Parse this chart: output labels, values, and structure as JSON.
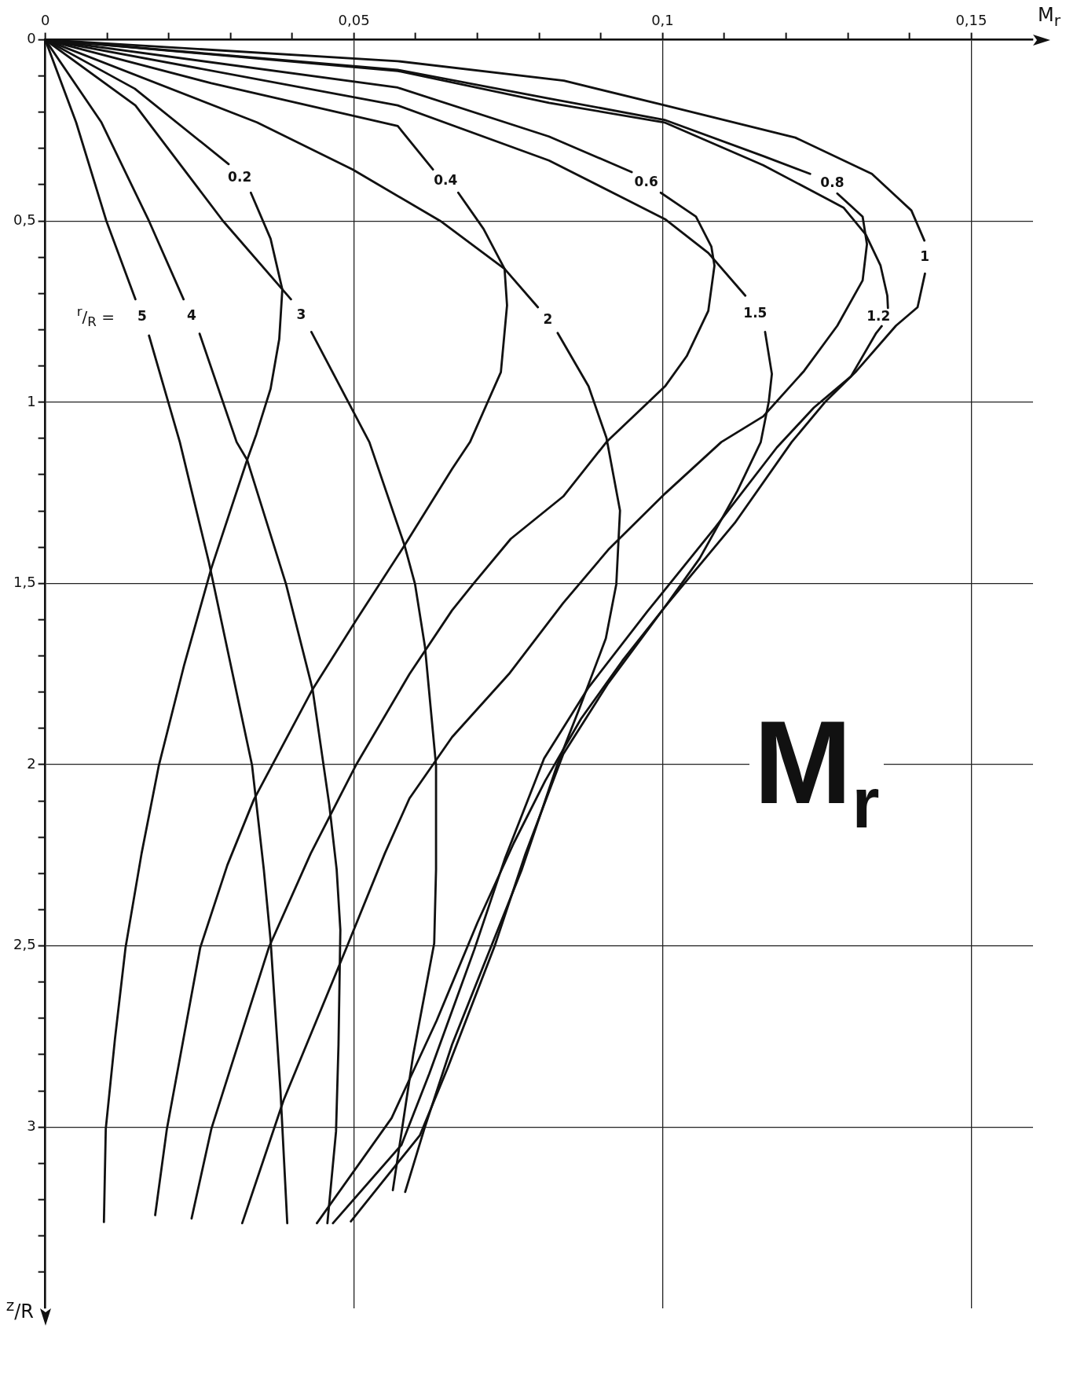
{
  "chart_data": {
    "type": "line",
    "title": "M$_{r}$",
    "xlabel": "M$_{r}$",
    "ylabel": "$^{z}$/R",
    "annotations": [
      "$^{r}$/$_{R}$ ="
    ],
    "xlim": [
      0,
      0.16
    ],
    "xticks": [
      0,
      {
        "value": 0.01,
        "label": null
      },
      {
        "value": 0.02,
        "label": null
      },
      {
        "value": 0.03,
        "label": null
      },
      {
        "value": 0.04,
        "label": null
      },
      {
        "value": 0.05,
        "label": "0,05"
      },
      {
        "value": 0.06,
        "label": null
      },
      {
        "value": 0.07,
        "label": null
      },
      {
        "value": 0.08,
        "label": null
      },
      {
        "value": 0.09,
        "label": null
      },
      {
        "value": 0.1,
        "label": "0,1"
      },
      {
        "value": 0.11,
        "label": null
      },
      {
        "value": 0.12,
        "label": null
      },
      {
        "value": 0.13,
        "label": null
      },
      {
        "value": 0.14,
        "label": null
      },
      {
        "value": 0.15,
        "label": "0,15"
      }
    ],
    "ylim": [
      3.5,
      0
    ],
    "yticks": [
      0,
      {
        "value": 0.1,
        "label": null
      },
      {
        "value": 0.2,
        "label": null
      },
      {
        "value": 0.3,
        "label": null
      },
      {
        "value": 0.4,
        "label": null
      },
      {
        "value": 0.5,
        "label": "0,5"
      },
      {
        "value": 0.6,
        "label": null
      },
      {
        "value": 0.7,
        "label": null
      },
      {
        "value": 0.8,
        "label": null
      },
      {
        "value": 0.9,
        "label": null
      },
      1,
      {
        "value": 1.1,
        "label": null
      },
      {
        "value": 1.2,
        "label": null
      },
      {
        "value": 1.3,
        "label": null
      },
      {
        "value": 1.4,
        "label": null
      },
      {
        "value": 1.5,
        "label": "1,5"
      },
      {
        "value": 1.6,
        "label": null
      },
      {
        "value": 1.7,
        "label": null
      },
      {
        "value": 1.8,
        "label": null
      },
      {
        "value": 1.9,
        "label": null
      },
      2,
      {
        "value": 2.1,
        "label": null
      },
      {
        "value": 2.2,
        "label": null
      },
      {
        "value": 2.3,
        "label": null
      },
      {
        "value": 2.4,
        "label": null
      },
      {
        "value": 2.5,
        "label": "2,5"
      },
      {
        "value": 2.6,
        "label": null
      },
      {
        "value": 2.7,
        "label": null
      },
      {
        "value": 2.8,
        "label": null
      },
      {
        "value": 2.9,
        "label": null
      },
      3,
      {
        "value": 3.1,
        "label": null
      },
      {
        "value": 3.2,
        "label": null
      },
      {
        "value": 3.3,
        "label": null
      },
      {
        "value": 3.4,
        "label": null
      }
    ],
    "grid": true,
    "legend": false,
    "marker": "none",
    "line_style": "solid",
    "series": [
      {
        "name": "0.2",
        "color": "#111111",
        "x": [
          0,
          0.0145,
          0.0297,
          null,
          0.0333,
          0.0365,
          0.0384,
          0.0379,
          0.0365,
          0.0342,
          0.0327,
          0.0269,
          0.0225,
          0.0184,
          0.0156,
          0.013,
          0.0113,
          0.0098,
          0.0095
        ],
        "values": [
          0,
          0.135,
          0.343,
          null,
          0.422,
          0.549,
          0.689,
          0.826,
          0.963,
          1.088,
          1.159,
          1.458,
          1.725,
          2.002,
          2.245,
          2.505,
          2.755,
          3.005,
          3.262
        ]
      },
      {
        "name": "0.4",
        "color": "#111111",
        "x": [
          0,
          0.0269,
          0.0571,
          0.0628,
          null,
          0.0669,
          0.071,
          0.0744,
          0.0748,
          0.0738,
          0.0688,
          0.0659,
          0.0582,
          0.0503,
          0.0433,
          0.0338,
          0.0295,
          0.0251,
          0.0197,
          0.0178
        ],
        "values": [
          0,
          0.12,
          0.238,
          0.358,
          null,
          0.422,
          0.522,
          0.632,
          0.733,
          0.917,
          1.11,
          1.184,
          1.395,
          1.603,
          1.792,
          2.096,
          2.277,
          2.505,
          3.005,
          3.243
        ]
      },
      {
        "name": "0.6",
        "color": "#111111",
        "x": [
          0,
          0.0571,
          0.0816,
          0.095,
          null,
          0.0997,
          0.1054,
          0.1079,
          0.1084,
          0.1074,
          0.1039,
          0.1004,
          0.0909,
          0.0839,
          0.0754,
          0.0693,
          0.0659,
          0.059,
          0.0503,
          0.043,
          0.0362,
          0.0269,
          0.0237
        ],
        "values": [
          0,
          0.132,
          0.267,
          0.365,
          null,
          0.422,
          0.488,
          0.571,
          0.623,
          0.748,
          0.873,
          0.956,
          1.11,
          1.26,
          1.377,
          1.502,
          1.574,
          1.75,
          2.002,
          2.245,
          2.505,
          3.005,
          3.252
        ]
      },
      {
        "name": "0.8",
        "color": "#111111",
        "x": [
          0,
          0.0571,
          0.0816,
          0.1003,
          0.1163,
          0.1239,
          null,
          0.1283,
          0.1324,
          0.1331,
          0.1324,
          0.1283,
          0.1229,
          0.1163,
          0.1095,
          0.1004,
          0.0912,
          0.0839,
          0.0751,
          0.0659,
          0.059,
          0.055,
          0.0488,
          0.0386,
          0.0319
        ],
        "values": [
          0,
          0.083,
          0.162,
          0.221,
          0.321,
          0.37,
          null,
          0.424,
          0.488,
          0.564,
          0.664,
          0.789,
          0.914,
          1.039,
          1.11,
          1.252,
          1.407,
          1.554,
          1.75,
          1.924,
          2.093,
          2.245,
          2.505,
          2.926,
          3.265
        ]
      },
      {
        "name": "1",
        "color": "#111111",
        "x": [
          0,
          0.0571,
          0.084,
          0.1004,
          0.1215,
          0.1339,
          0.1403,
          0.1424,
          null,
          0.1425,
          0.1413,
          0.1378,
          0.1314,
          0.1264,
          0.1209,
          0.1117,
          0.1004,
          0.0912,
          0.0839,
          0.0778,
          0.0728,
          0.0652,
          0.0607,
          0.0495
        ],
        "values": [
          0,
          0.059,
          0.113,
          0.181,
          0.27,
          0.37,
          0.471,
          0.554,
          null,
          0.645,
          0.738,
          0.789,
          0.914,
          0.998,
          1.11,
          1.333,
          1.564,
          1.775,
          1.971,
          2.245,
          2.5,
          2.836,
          3.022,
          3.26
        ]
      },
      {
        "name": "1.2",
        "color": "#111111",
        "x": [
          0,
          0.0571,
          0.0816,
          0.1003,
          0.1163,
          0.1293,
          0.1329,
          0.1353,
          0.1364,
          0.1365,
          null,
          0.1355,
          0.1346,
          0.1305,
          0.1245,
          0.1185,
          0.1085,
          0.0975,
          0.088,
          0.0808,
          0.0745,
          0.0695,
          0.0622,
          0.0577,
          0.0466
        ],
        "values": [
          0,
          0.086,
          0.174,
          0.228,
          0.346,
          0.463,
          0.537,
          0.623,
          0.706,
          0.74,
          null,
          0.79,
          0.809,
          0.929,
          1.015,
          1.125,
          1.346,
          1.578,
          1.787,
          1.983,
          2.257,
          2.51,
          2.853,
          3.049,
          3.265
        ]
      },
      {
        "name": "1.5",
        "color": "#111111",
        "x": [
          0,
          0.0571,
          0.0816,
          0.1004,
          0.1074,
          0.1134,
          null,
          0.1166,
          0.1177,
          0.1172,
          0.1159,
          0.1121,
          0.106,
          0.1004,
          0.0935,
          0.0868,
          0.081,
          0.0759,
          0.07,
          0.0634,
          0.0561,
          0.044
        ],
        "values": [
          0,
          0.181,
          0.333,
          0.495,
          0.588,
          0.706,
          null,
          0.806,
          0.922,
          0.998,
          1.11,
          1.245,
          1.431,
          1.564,
          1.713,
          1.873,
          2.044,
          2.216,
          2.436,
          2.706,
          2.975,
          3.265
        ]
      },
      {
        "name": "2",
        "color": "#111111",
        "x": [
          0,
          0.0343,
          0.0498,
          0.064,
          0.0744,
          0.0798,
          null,
          0.083,
          0.088,
          0.0909,
          0.0931,
          0.0925,
          0.0908,
          0.0865,
          0.0829,
          0.0772,
          0.0659,
          0.0614,
          0.0583
        ],
        "values": [
          0,
          0.228,
          0.358,
          0.5,
          0.632,
          0.738,
          null,
          0.809,
          0.956,
          1.098,
          1.299,
          1.502,
          1.652,
          1.846,
          2.002,
          2.289,
          2.772,
          3.005,
          3.179
        ]
      },
      {
        "name": "3",
        "color": "#111111",
        "x": [
          0,
          0.0146,
          0.0288,
          0.0398,
          null,
          0.0431,
          0.0525,
          0.0582,
          0.0599,
          0.0615,
          0.0633,
          0.0633,
          0.063,
          0.0596,
          0.0563
        ],
        "values": [
          0,
          0.181,
          0.5,
          0.716,
          null,
          0.806,
          1.11,
          1.395,
          1.502,
          1.674,
          2.002,
          2.289,
          2.493,
          2.801,
          3.174
        ]
      },
      {
        "name": "4",
        "color": "#111111",
        "x": [
          0,
          0.0091,
          0.0168,
          0.0224,
          null,
          0.025,
          0.031,
          0.0327,
          0.039,
          0.0433,
          0.046,
          0.0472,
          0.0478,
          0.0475,
          0.0471,
          0.0457
        ],
        "values": [
          0,
          0.228,
          0.5,
          0.716,
          null,
          0.811,
          1.11,
          1.159,
          1.502,
          1.792,
          2.11,
          2.289,
          2.456,
          2.772,
          3.012,
          3.265
        ]
      },
      {
        "name": "5",
        "color": "#111111",
        "x": [
          0,
          0.005,
          0.0099,
          0.0146,
          null,
          0.0168,
          0.0218,
          0.0265,
          0.0335,
          0.0354,
          0.0365,
          0.0381,
          0.0392
        ],
        "values": [
          0,
          0.228,
          0.5,
          0.716,
          null,
          0.816,
          1.11,
          1.441,
          2.002,
          2.289,
          2.485,
          2.9,
          3.265
        ]
      }
    ]
  }
}
